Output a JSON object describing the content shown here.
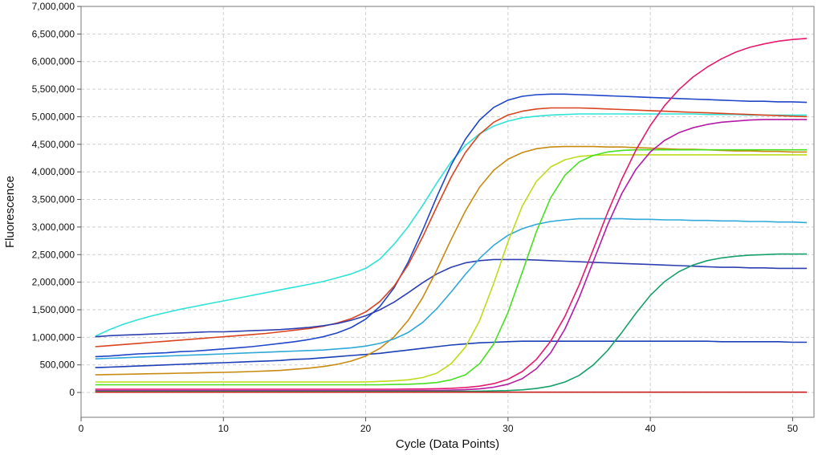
{
  "chart_data": {
    "type": "line",
    "title": "",
    "xlabel": "Cycle (Data Points)",
    "ylabel": "Fluorescence",
    "xlim": [
      0,
      51.5
    ],
    "ylim": [
      -450000,
      7000000
    ],
    "x_ticks": [
      0,
      10,
      20,
      30,
      40,
      50
    ],
    "x_tick_labels": [
      "0",
      "10",
      "20",
      "30",
      "40",
      "50"
    ],
    "y_ticks": [
      0,
      500000,
      1000000,
      1500000,
      2000000,
      2500000,
      3000000,
      3500000,
      4000000,
      4500000,
      5000000,
      5500000,
      6000000,
      6500000,
      7000000
    ],
    "y_tick_labels": [
      "0",
      "500,000",
      "1,000,000",
      "1,500,000",
      "2,000,000",
      "2,500,000",
      "3,000,000",
      "3,500,000",
      "4,000,000",
      "4,500,000",
      "5,000,000",
      "5,500,000",
      "6,000,000",
      "6,500,000",
      "7,000,000"
    ],
    "grid": true,
    "legend": "none",
    "x": [
      1,
      2,
      3,
      4,
      5,
      6,
      7,
      8,
      9,
      10,
      11,
      12,
      13,
      14,
      15,
      16,
      17,
      18,
      19,
      20,
      21,
      22,
      23,
      24,
      25,
      26,
      27,
      28,
      29,
      30,
      31,
      32,
      33,
      34,
      35,
      36,
      37,
      38,
      39,
      40,
      41,
      42,
      43,
      44,
      45,
      46,
      47,
      48,
      49,
      50,
      51
    ],
    "series": [
      {
        "color": "#2fe3d6",
        "values": [
          1020000,
          1140000,
          1240000,
          1320000,
          1390000,
          1450000,
          1510000,
          1560000,
          1610000,
          1660000,
          1710000,
          1760000,
          1810000,
          1860000,
          1910000,
          1960000,
          2010000,
          2080000,
          2150000,
          2250000,
          2420000,
          2690000,
          3010000,
          3390000,
          3800000,
          4180000,
          4480000,
          4690000,
          4830000,
          4920000,
          4980000,
          5010000,
          5030000,
          5040000,
          5050000,
          5050000,
          5050000,
          5050000,
          5050000,
          5050000,
          5050000,
          5050000,
          5050000,
          5040000,
          5040000,
          5040000,
          5030000,
          5030000,
          5030000,
          5030000,
          5030000
        ]
      },
      {
        "color": "#1f46c8",
        "values": [
          650000,
          660000,
          680000,
          700000,
          710000,
          720000,
          740000,
          750000,
          770000,
          790000,
          810000,
          830000,
          860000,
          890000,
          920000,
          960000,
          1010000,
          1080000,
          1180000,
          1330000,
          1560000,
          1900000,
          2370000,
          2940000,
          3550000,
          4120000,
          4590000,
          4940000,
          5170000,
          5300000,
          5370000,
          5400000,
          5410000,
          5410000,
          5400000,
          5390000,
          5380000,
          5370000,
          5360000,
          5350000,
          5340000,
          5330000,
          5320000,
          5310000,
          5300000,
          5290000,
          5280000,
          5280000,
          5270000,
          5270000,
          5260000
        ]
      },
      {
        "color": "#d94420",
        "values": [
          830000,
          850000,
          870000,
          890000,
          910000,
          930000,
          950000,
          970000,
          990000,
          1010000,
          1030000,
          1050000,
          1070000,
          1100000,
          1130000,
          1160000,
          1200000,
          1260000,
          1340000,
          1460000,
          1650000,
          1930000,
          2320000,
          2820000,
          3370000,
          3900000,
          4350000,
          4680000,
          4900000,
          5030000,
          5100000,
          5140000,
          5160000,
          5160000,
          5160000,
          5150000,
          5140000,
          5130000,
          5120000,
          5110000,
          5100000,
          5090000,
          5080000,
          5070000,
          5060000,
          5050000,
          5040000,
          5030000,
          5020000,
          5010000,
          5000000
        ]
      },
      {
        "color": "#2f3fb0",
        "values": [
          1010000,
          1030000,
          1040000,
          1050000,
          1060000,
          1070000,
          1080000,
          1090000,
          1100000,
          1100000,
          1110000,
          1120000,
          1130000,
          1140000,
          1160000,
          1180000,
          1210000,
          1250000,
          1310000,
          1390000,
          1500000,
          1640000,
          1810000,
          1990000,
          2150000,
          2270000,
          2350000,
          2390000,
          2410000,
          2410000,
          2410000,
          2400000,
          2390000,
          2380000,
          2370000,
          2360000,
          2350000,
          2340000,
          2330000,
          2320000,
          2310000,
          2300000,
          2290000,
          2280000,
          2270000,
          2270000,
          2260000,
          2260000,
          2250000,
          2250000,
          2250000
        ]
      },
      {
        "color": "#1b3fb5",
        "values": [
          450000,
          460000,
          470000,
          480000,
          490000,
          500000,
          510000,
          520000,
          530000,
          540000,
          550000,
          560000,
          570000,
          580000,
          600000,
          610000,
          630000,
          650000,
          670000,
          690000,
          710000,
          740000,
          770000,
          800000,
          830000,
          860000,
          880000,
          900000,
          910000,
          920000,
          930000,
          930000,
          930000,
          930000,
          930000,
          930000,
          930000,
          930000,
          930000,
          930000,
          930000,
          930000,
          930000,
          930000,
          920000,
          920000,
          920000,
          920000,
          920000,
          910000,
          910000
        ]
      },
      {
        "color": "#c88a10",
        "values": [
          320000,
          325000,
          330000,
          335000,
          340000,
          345000,
          350000,
          355000,
          360000,
          365000,
          370000,
          380000,
          390000,
          400000,
          420000,
          440000,
          470000,
          510000,
          570000,
          660000,
          800000,
          1010000,
          1310000,
          1720000,
          2220000,
          2770000,
          3290000,
          3720000,
          4030000,
          4230000,
          4350000,
          4420000,
          4450000,
          4460000,
          4460000,
          4460000,
          4450000,
          4450000,
          4440000,
          4430000,
          4420000,
          4410000,
          4410000,
          4400000,
          4390000,
          4380000,
          4380000,
          4370000,
          4370000,
          4360000,
          4360000
        ]
      },
      {
        "color": "#30a8d8",
        "values": [
          610000,
          620000,
          630000,
          640000,
          650000,
          660000,
          670000,
          680000,
          690000,
          700000,
          710000,
          720000,
          730000,
          740000,
          750000,
          760000,
          770000,
          790000,
          810000,
          840000,
          890000,
          970000,
          1090000,
          1270000,
          1520000,
          1820000,
          2140000,
          2430000,
          2670000,
          2850000,
          2970000,
          3050000,
          3100000,
          3130000,
          3150000,
          3150000,
          3150000,
          3150000,
          3140000,
          3140000,
          3130000,
          3130000,
          3120000,
          3120000,
          3110000,
          3110000,
          3100000,
          3100000,
          3090000,
          3090000,
          3080000
        ]
      },
      {
        "color": "#bedc1a",
        "values": [
          190000,
          190000,
          190000,
          190000,
          190000,
          190000,
          190000,
          190000,
          190000,
          190000,
          190000,
          190000,
          190000,
          190000,
          190000,
          190000,
          190000,
          190000,
          190000,
          190000,
          200000,
          210000,
          230000,
          270000,
          350000,
          520000,
          820000,
          1300000,
          1980000,
          2730000,
          3380000,
          3830000,
          4090000,
          4220000,
          4280000,
          4300000,
          4310000,
          4310000,
          4310000,
          4310000,
          4310000,
          4310000,
          4310000,
          4310000,
          4310000,
          4310000,
          4310000,
          4310000,
          4310000,
          4310000,
          4310000
        ]
      },
      {
        "color": "#47e01f",
        "values": [
          140000,
          140000,
          140000,
          140000,
          140000,
          140000,
          140000,
          140000,
          140000,
          140000,
          140000,
          140000,
          140000,
          140000,
          140000,
          140000,
          140000,
          140000,
          140000,
          140000,
          140000,
          145000,
          150000,
          160000,
          180000,
          230000,
          320000,
          520000,
          880000,
          1450000,
          2180000,
          2920000,
          3530000,
          3940000,
          4180000,
          4300000,
          4360000,
          4390000,
          4400000,
          4400000,
          4400000,
          4400000,
          4400000,
          4400000,
          4400000,
          4400000,
          4400000,
          4400000,
          4400000,
          4400000,
          4400000
        ]
      },
      {
        "color": "#e41a6e",
        "values": [
          60000,
          60000,
          60000,
          60000,
          60000,
          60000,
          60000,
          60000,
          60000,
          60000,
          60000,
          60000,
          60000,
          60000,
          60000,
          60000,
          60000,
          60000,
          60000,
          60000,
          60000,
          60000,
          62000,
          64000,
          68000,
          75000,
          90000,
          115000,
          160000,
          240000,
          380000,
          600000,
          930000,
          1380000,
          1950000,
          2600000,
          3260000,
          3870000,
          4400000,
          4840000,
          5200000,
          5490000,
          5720000,
          5900000,
          6050000,
          6170000,
          6260000,
          6320000,
          6370000,
          6400000,
          6420000
        ]
      },
      {
        "color": "#b41aa4",
        "values": [
          35000,
          35000,
          35000,
          35000,
          35000,
          35000,
          35000,
          35000,
          35000,
          35000,
          35000,
          35000,
          35000,
          35000,
          35000,
          35000,
          35000,
          35000,
          35000,
          35000,
          35000,
          35000,
          35000,
          36000,
          38000,
          42000,
          50000,
          65000,
          95000,
          150000,
          250000,
          430000,
          720000,
          1150000,
          1720000,
          2380000,
          3040000,
          3610000,
          4050000,
          4360000,
          4570000,
          4710000,
          4800000,
          4860000,
          4900000,
          4920000,
          4940000,
          4950000,
          4950000,
          4950000,
          4950000
        ]
      },
      {
        "color": "#16a06a",
        "values": [
          20000,
          20000,
          20000,
          20000,
          20000,
          20000,
          20000,
          20000,
          20000,
          20000,
          20000,
          20000,
          20000,
          20000,
          20000,
          20000,
          20000,
          20000,
          20000,
          20000,
          20000,
          20000,
          20000,
          20000,
          20000,
          21000,
          22000,
          24000,
          28000,
          35000,
          48000,
          72000,
          115000,
          190000,
          310000,
          500000,
          760000,
          1090000,
          1440000,
          1760000,
          2010000,
          2190000,
          2310000,
          2390000,
          2440000,
          2470000,
          2490000,
          2500000,
          2510000,
          2510000,
          2510000
        ]
      },
      {
        "color": "#c81e1e",
        "values": [
          5000,
          5000,
          5000,
          5000,
          5000,
          5000,
          5000,
          5000,
          5000,
          5000,
          5000,
          5000,
          5000,
          5000,
          5000,
          5000,
          5000,
          5000,
          5000,
          5000,
          5000,
          5000,
          5000,
          5000,
          5000,
          5000,
          5000,
          5000,
          5000,
          5000,
          5000,
          5000,
          5000,
          5000,
          5000,
          5000,
          5000,
          5000,
          5000,
          5000,
          5000,
          5000,
          5000,
          5000,
          5000,
          5000,
          5000,
          5000,
          5000,
          5000,
          5000
        ]
      }
    ]
  }
}
